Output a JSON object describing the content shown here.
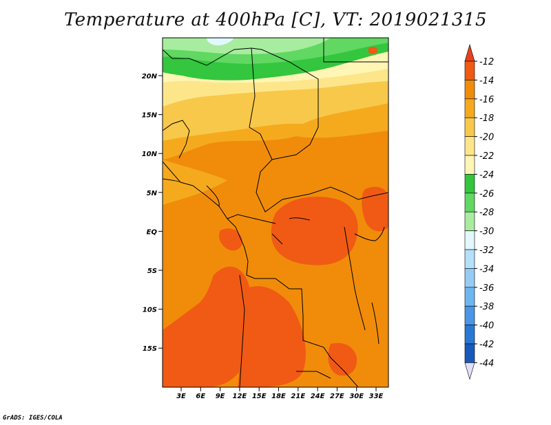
{
  "title": "Temperature at 400hPa [C], VT: 2019021315",
  "credit": "GrADS: IGES/COLA",
  "axes": {
    "lat_labels": [
      "20N",
      "15N",
      "10N",
      "5N",
      "EQ",
      "5S",
      "10S",
      "15S"
    ],
    "lon_labels": [
      "3E",
      "6E",
      "9E",
      "12E",
      "15E",
      "18E",
      "21E",
      "24E",
      "27E",
      "30E",
      "33E"
    ]
  },
  "colorbar": {
    "labels": [
      "-12",
      "-14",
      "-16",
      "-18",
      "-20",
      "-22",
      "-24",
      "-26",
      "-28",
      "-30",
      "-32",
      "-34",
      "-36",
      "-38",
      "-40",
      "-42",
      "-44"
    ],
    "colors": [
      "#f05a14",
      "#f08c0a",
      "#f5aa1e",
      "#f8c84a",
      "#fde68a",
      "#fff5b4",
      "#33c63e",
      "#60d862",
      "#a8eca0",
      "#e2f8ff",
      "#b4e0f8",
      "#96ccf4",
      "#6eb6f0",
      "#4a96e6",
      "#2a78d6",
      "#185abc",
      "#0a1a82"
    ],
    "top_arrow_color": "#e8411a",
    "bottom_arrow_color": "#e0e0f8"
  },
  "field_colors": {
    "greenish_dark": "#33c63e",
    "green_mid": "#60d862",
    "green_light": "#a8eca0",
    "pale_cyan": "#e2f8ff",
    "pale_yellow": "#fff5b4",
    "light_yellow": "#fde68a",
    "yellow_orange": "#f8c84a",
    "light_orange": "#f5aa1e",
    "orange": "#f08c0a",
    "dark_orange": "#f05a14"
  }
}
